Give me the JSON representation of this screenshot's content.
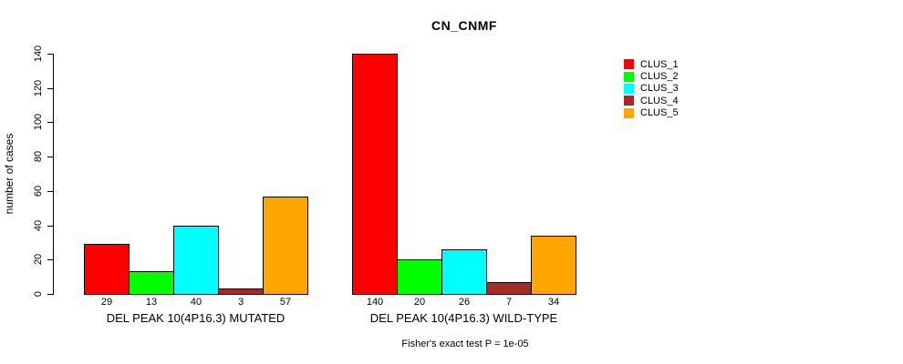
{
  "chart_data": {
    "type": "bar",
    "title": "CN_CNMF",
    "ylabel": "number of cases",
    "xlabel": "",
    "ylim": [
      0,
      140
    ],
    "yticks": [
      0,
      20,
      40,
      60,
      80,
      100,
      120,
      140
    ],
    "grid": false,
    "legend_position": "right",
    "categories": [
      "DEL PEAK 10(4P16.3) MUTATED",
      "DEL PEAK 10(4P16.3) WILD-TYPE"
    ],
    "series": [
      {
        "name": "CLUS_1",
        "color": "#FF0000",
        "values": [
          29,
          140
        ]
      },
      {
        "name": "CLUS_2",
        "color": "#00FF00",
        "values": [
          13,
          20
        ]
      },
      {
        "name": "CLUS_3",
        "color": "#00FFFF",
        "values": [
          40,
          26
        ]
      },
      {
        "name": "CLUS_4",
        "color": "#A52A2A",
        "values": [
          3,
          7
        ]
      },
      {
        "name": "CLUS_5",
        "color": "#FFA500",
        "values": [
          57,
          34
        ]
      }
    ],
    "bar_value_labels": [
      [
        29,
        13,
        40,
        3,
        57
      ],
      [
        140,
        20,
        26,
        7,
        34
      ]
    ],
    "annotation": "Fisher's exact test P = 1e-05",
    "colors": {
      "background": "#FFFFFF",
      "bar_border": "#000000",
      "text": "#000000"
    }
  }
}
